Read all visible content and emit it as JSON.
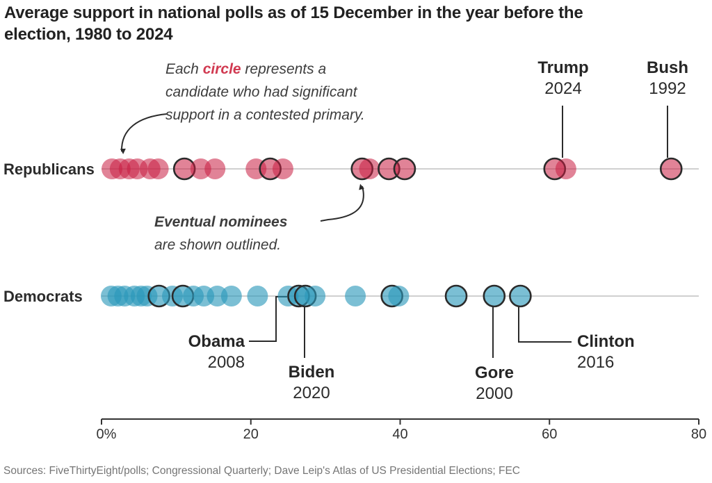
{
  "title": {
    "line1": "Average support in national polls as of 15 December in the year before the",
    "line2": "election, 1980 to 2024"
  },
  "annotations": {
    "circle_note": {
      "pre": "Each ",
      "highlight": "circle",
      "post": " represents a",
      "line2": "candidate who had significant",
      "line3": "support in a contested primary.",
      "highlight_color": "#d13a51"
    },
    "nominee_note": {
      "bold": "Eventual nominees",
      "line2": "are shown outlined."
    }
  },
  "sources": "Sources: FiveThirtyEight/polls; Congressional Quarterly; Dave Leip's Atlas of US Presidential Elections; FEC",
  "colors": {
    "republican_base": "#c91d42",
    "republican_fill": "rgba(201,29,66,0.55)",
    "democrat_base": "#2a98ba",
    "democrat_fill": "rgba(42,152,186,0.62)",
    "outline": "#2b2b2b",
    "row_line": "#b3b3b3",
    "axis": "#333333"
  },
  "chart_data": {
    "type": "scatter",
    "title": "Average support in national polls as of 15 December in the year before the election, 1980 to 2024",
    "x_axis": {
      "min": 0,
      "max": 80,
      "tick_values": [
        0,
        20,
        40,
        60,
        80
      ],
      "tick_labels": [
        "0%",
        "20",
        "40",
        "60",
        "80"
      ],
      "unit": "percent of primary support"
    },
    "outlined_meaning": "Eventual nominees are shown outlined",
    "rows": [
      {
        "name": "Republicans",
        "fill": "rgba(201,29,66,0.55)",
        "points": [
          {
            "v": 1.4,
            "outlined": false
          },
          {
            "v": 2.5,
            "outlined": false
          },
          {
            "v": 3.7,
            "outlined": false
          },
          {
            "v": 4.8,
            "outlined": false
          },
          {
            "v": 6.5,
            "outlined": false
          },
          {
            "v": 7.6,
            "outlined": false
          },
          {
            "v": 11.1,
            "outlined": true
          },
          {
            "v": 13.3,
            "outlined": false
          },
          {
            "v": 15.2,
            "outlined": false
          },
          {
            "v": 20.7,
            "outlined": false
          },
          {
            "v": 22.6,
            "outlined": true
          },
          {
            "v": 24.3,
            "outlined": false
          },
          {
            "v": 34.9,
            "outlined": true
          },
          {
            "v": 35.9,
            "outlined": false
          },
          {
            "v": 38.5,
            "outlined": true
          },
          {
            "v": 40.6,
            "outlined": true
          },
          {
            "v": 60.7,
            "outlined": true
          },
          {
            "v": 62.2,
            "outlined": false
          },
          {
            "v": 76.3,
            "outlined": true
          }
        ]
      },
      {
        "name": "Democrats",
        "fill": "rgba(42,152,186,0.62)",
        "points": [
          {
            "v": 1.3,
            "outlined": false
          },
          {
            "v": 2.2,
            "outlined": false
          },
          {
            "v": 3.1,
            "outlined": false
          },
          {
            "v": 4.4,
            "outlined": false
          },
          {
            "v": 5.3,
            "outlined": false
          },
          {
            "v": 6.1,
            "outlined": false
          },
          {
            "v": 7.7,
            "outlined": true
          },
          {
            "v": 9.5,
            "outlined": false
          },
          {
            "v": 10.9,
            "outlined": true
          },
          {
            "v": 12.3,
            "outlined": false
          },
          {
            "v": 13.7,
            "outlined": false
          },
          {
            "v": 15.5,
            "outlined": false
          },
          {
            "v": 17.4,
            "outlined": false
          },
          {
            "v": 20.9,
            "outlined": false
          },
          {
            "v": 25.0,
            "outlined": false
          },
          {
            "v": 26.4,
            "outlined": true
          },
          {
            "v": 27.3,
            "outlined": true
          },
          {
            "v": 28.6,
            "outlined": false
          },
          {
            "v": 34.0,
            "outlined": false
          },
          {
            "v": 38.9,
            "outlined": true
          },
          {
            "v": 39.8,
            "outlined": false
          },
          {
            "v": 47.5,
            "outlined": true
          },
          {
            "v": 52.6,
            "outlined": true
          },
          {
            "v": 56.1,
            "outlined": true
          }
        ]
      }
    ],
    "labeled_points": [
      {
        "row": "Republicans",
        "name": "Trump",
        "year": "2024",
        "value": 60.7
      },
      {
        "row": "Republicans",
        "name": "Bush",
        "year": "1992",
        "value": 76.3
      },
      {
        "row": "Democrats",
        "name": "Obama",
        "year": "2008",
        "value": 26.4
      },
      {
        "row": "Democrats",
        "name": "Biden",
        "year": "2020",
        "value": 27.3
      },
      {
        "row": "Democrats",
        "name": "Gore",
        "year": "2000",
        "value": 52.6
      },
      {
        "row": "Democrats",
        "name": "Clinton",
        "year": "2016",
        "value": 56.1
      }
    ]
  }
}
